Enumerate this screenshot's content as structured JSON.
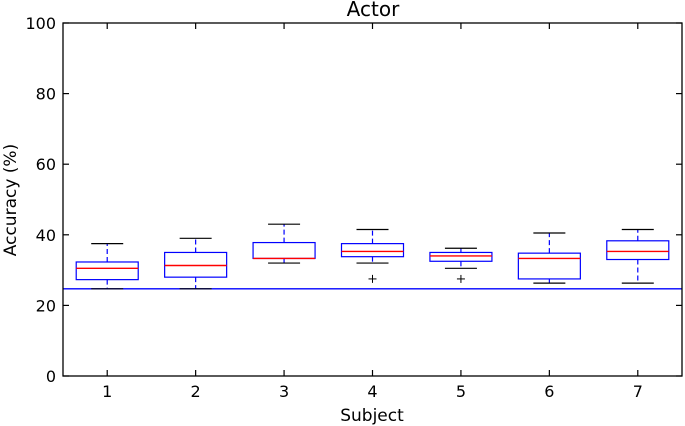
{
  "chart_data": {
    "type": "box",
    "title": "Actor",
    "xlabel": "Subject",
    "ylabel": "Accuracy (%)",
    "ylim": [
      0,
      100
    ],
    "xlim": [
      0.5,
      7.5
    ],
    "yticks": [
      0,
      20,
      40,
      60,
      80,
      100
    ],
    "categories": [
      "1",
      "2",
      "3",
      "4",
      "5",
      "6",
      "7"
    ],
    "grid": false,
    "reference_line": {
      "y": 24.7,
      "color": "#0000ff"
    },
    "colors": {
      "box": "#0000ff",
      "median": "#ff0000",
      "whisker": "#0000ff",
      "cap": "#000000",
      "flier": "#000000",
      "reference": "#0000ff"
    },
    "boxes": [
      {
        "label": "1",
        "whislo": 24.7,
        "q1": 27.3,
        "med": 30.5,
        "q3": 32.3,
        "whishi": 37.5,
        "fliers": []
      },
      {
        "label": "2",
        "whislo": 24.7,
        "q1": 28.0,
        "med": 31.3,
        "q3": 35.0,
        "whishi": 39.0,
        "fliers": []
      },
      {
        "label": "3",
        "whislo": 32.0,
        "q1": 33.3,
        "med": 33.3,
        "q3": 37.8,
        "whishi": 43.0,
        "fliers": []
      },
      {
        "label": "4",
        "whislo": 32.0,
        "q1": 33.8,
        "med": 35.3,
        "q3": 37.5,
        "whishi": 41.5,
        "fliers": [
          27.5
        ]
      },
      {
        "label": "5",
        "whislo": 30.5,
        "q1": 32.5,
        "med": 34.0,
        "q3": 35.0,
        "whishi": 36.2,
        "fliers": [
          27.5
        ]
      },
      {
        "label": "6",
        "whislo": 26.3,
        "q1": 27.5,
        "med": 33.3,
        "q3": 34.8,
        "whishi": 40.5,
        "fliers": []
      },
      {
        "label": "7",
        "whislo": 26.3,
        "q1": 33.0,
        "med": 35.3,
        "q3": 38.3,
        "whishi": 41.5,
        "fliers": []
      }
    ]
  }
}
